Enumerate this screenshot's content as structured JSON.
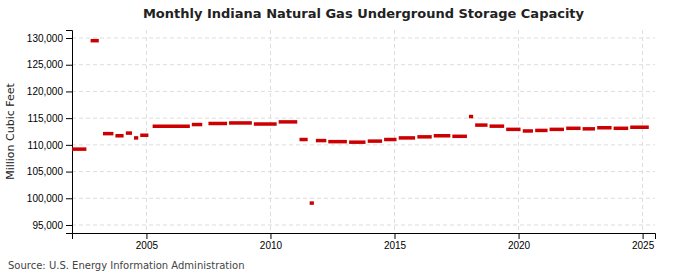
{
  "chart_data": {
    "type": "step",
    "title": "Monthly Indiana Natural Gas Underground Storage Capacity",
    "ylabel": "Million Cubic Feet",
    "source": "Source: U.S. Energy Information Administration",
    "color": "#cc0000",
    "grid": true,
    "xlim": [
      2002.0,
      2025.5
    ],
    "ylim": [
      93500,
      131500
    ],
    "xticks": [
      2005,
      2010,
      2015,
      2020,
      2025
    ],
    "yticks": [
      {
        "value": 95000,
        "label": "95,000"
      },
      {
        "value": 100000,
        "label": "100,000"
      },
      {
        "value": 105000,
        "label": "105,000"
      },
      {
        "value": 110000,
        "label": "110,000"
      },
      {
        "value": 115000,
        "label": "115,000"
      },
      {
        "value": 120000,
        "label": "120,000"
      },
      {
        "value": 125000,
        "label": "125,000"
      },
      {
        "value": 130000,
        "label": "130,000"
      }
    ],
    "x": [
      2002.0,
      2002.75,
      2003.25,
      2003.75,
      2004.17,
      2004.5,
      2004.75,
      2005.25,
      2006.83,
      2007.5,
      2008.33,
      2009.33,
      2010.33,
      2011.17,
      2011.58,
      2011.83,
      2012.33,
      2013.17,
      2013.92,
      2014.58,
      2015.17,
      2015.92,
      2016.58,
      2017.33,
      2018.0,
      2018.25,
      2018.83,
      2019.5,
      2020.17,
      2020.67,
      2021.25,
      2021.92,
      2022.58,
      2023.17,
      2023.83,
      2024.5
    ],
    "x_end": [
      2002.58,
      2003.08,
      2003.67,
      2004.08,
      2004.42,
      2004.67,
      2005.08,
      2006.75,
      2007.25,
      2008.25,
      2009.25,
      2010.25,
      2011.08,
      2011.5,
      2011.75,
      2012.25,
      2013.08,
      2013.83,
      2014.5,
      2015.08,
      2015.83,
      2016.5,
      2017.25,
      2017.92,
      2018.17,
      2018.75,
      2019.42,
      2020.08,
      2020.58,
      2021.17,
      2021.83,
      2022.5,
      2023.08,
      2023.75,
      2024.42,
      2025.25
    ],
    "values": [
      109200,
      129500,
      112100,
      111700,
      112200,
      111300,
      111800,
      113500,
      113800,
      114000,
      114100,
      113900,
      114300,
      111000,
      99100,
      110800,
      110600,
      110500,
      110700,
      111000,
      111300,
      111500,
      111700,
      111600,
      115300,
      113700,
      113500,
      112900,
      112600,
      112700,
      112900,
      113100,
      113000,
      113200,
      113100,
      113300
    ]
  }
}
